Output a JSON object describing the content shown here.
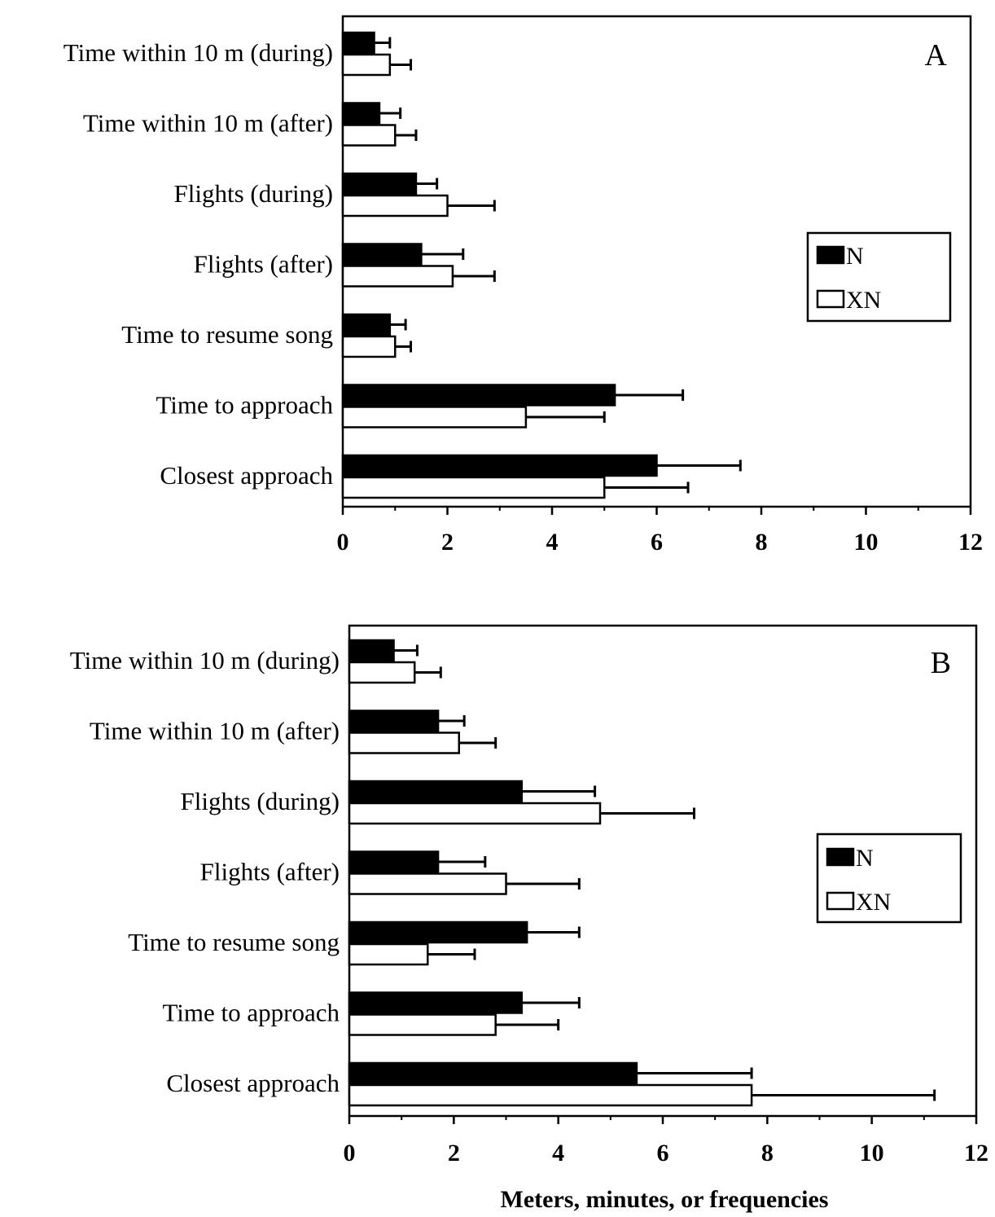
{
  "chart_data": [
    {
      "type": "bar",
      "orientation": "horizontal",
      "panel_label": "A",
      "categories": [
        "Time within 10 m (during)",
        "Time within 10 m (after)",
        "Flights (during)",
        "Flights (after)",
        "Time to resume song",
        "Time to approach",
        "Closest approach"
      ],
      "series": [
        {
          "name": "N",
          "color": "#000000",
          "values": [
            0.6,
            0.7,
            1.4,
            1.5,
            0.9,
            5.2,
            6.0
          ],
          "error": [
            0.3,
            0.4,
            0.4,
            0.8,
            0.3,
            1.3,
            1.6
          ]
        },
        {
          "name": "XN",
          "color": "#ffffff",
          "values": [
            0.9,
            1.0,
            2.0,
            2.1,
            1.0,
            3.5,
            5.0
          ],
          "error": [
            0.4,
            0.4,
            0.9,
            0.8,
            0.3,
            1.5,
            1.6
          ]
        }
      ],
      "xlim": [
        0,
        12
      ],
      "xticks": [
        "0",
        "2",
        "4",
        "6",
        "8",
        "10",
        "12"
      ],
      "legend": "right",
      "xlabel": ""
    },
    {
      "type": "bar",
      "orientation": "horizontal",
      "panel_label": "B",
      "categories": [
        "Time within 10 m (during)",
        "Time within 10 m (after)",
        "Flights (during)",
        "Flights (after)",
        "Time to resume song",
        "Time to approach",
        "Closest approach"
      ],
      "series": [
        {
          "name": "N",
          "color": "#000000",
          "values": [
            0.85,
            1.7,
            3.3,
            1.7,
            3.4,
            3.3,
            5.5
          ],
          "error": [
            0.45,
            0.5,
            1.4,
            0.9,
            1.0,
            1.1,
            2.2
          ]
        },
        {
          "name": "XN",
          "color": "#ffffff",
          "values": [
            1.25,
            2.1,
            4.8,
            3.0,
            1.5,
            2.8,
            7.7
          ],
          "error": [
            0.5,
            0.7,
            1.8,
            1.4,
            0.9,
            1.2,
            3.5
          ]
        }
      ],
      "xlim": [
        0,
        12
      ],
      "xticks": [
        "0",
        "2",
        "4",
        "6",
        "8",
        "10",
        "12"
      ],
      "legend": "right",
      "xlabel": "Meters, minutes, or frequencies"
    }
  ]
}
